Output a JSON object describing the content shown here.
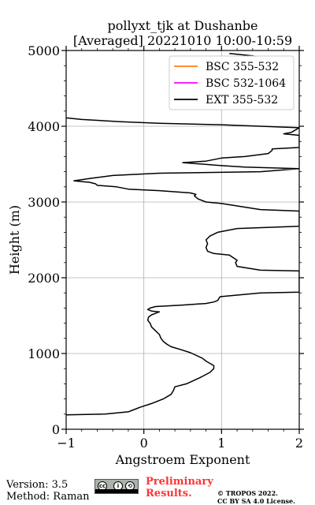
{
  "chart_data": {
    "type": "line",
    "title_line1": "pollyxt_tjk at Dushanbe",
    "title_line2": "[Averaged] 20221010 10:00-10:59",
    "xlabel": "Angstroem Exponent",
    "ylabel": "Height (m)",
    "xlim": [
      -1,
      2
    ],
    "ylim": [
      0,
      5000
    ],
    "xticks": [
      -1,
      0,
      1,
      2
    ],
    "yticks": [
      0,
      1000,
      2000,
      3000,
      4000,
      5000
    ],
    "grid": true,
    "legend_position": "top-right",
    "legend": [
      {
        "name": "BSC 355-532",
        "color": "#ff7f0e"
      },
      {
        "name": "BSC 532-1064",
        "color": "#ff00ff"
      },
      {
        "name": "EXT 355-532",
        "color": "#000000"
      }
    ],
    "series": [
      {
        "name": "EXT 355-532",
        "color": "#000000",
        "x": [
          -1.0,
          -0.5,
          -0.2,
          -0.15,
          -0.05,
          0.1,
          0.25,
          0.35,
          0.38,
          0.4,
          0.55,
          0.72,
          0.85,
          0.9,
          0.9,
          0.85,
          0.8,
          0.75,
          0.6,
          0.48,
          0.35,
          0.3,
          0.25,
          0.22,
          0.2,
          0.15,
          0.1,
          0.08,
          0.05,
          0.06,
          0.1,
          0.15,
          0.2,
          0.1,
          0.05,
          0.08,
          0.15,
          0.5,
          0.8,
          0.9,
          0.95,
          0.98,
          1.5,
          2.0,
          2.0,
          1.5,
          1.2,
          1.18,
          1.2,
          1.1,
          0.9,
          0.82,
          0.8,
          0.82,
          0.8,
          0.85,
          0.95,
          1.2,
          2.0,
          2.0,
          1.5,
          1.0,
          0.8,
          0.7,
          0.65,
          0.67,
          0.6,
          0.2,
          -0.2,
          -0.35,
          -0.6,
          -0.62,
          -0.7,
          -0.8,
          -0.9,
          -0.7,
          -0.4,
          0.2,
          1.5,
          2.0,
          1.3,
          1.0,
          0.5,
          0.8,
          1.0,
          1.3,
          1.6,
          1.65,
          1.65,
          2.0,
          2.0,
          1.8,
          1.9,
          2.0,
          1.5,
          1.0,
          0.2,
          -0.3,
          -0.8,
          -1.0
        ],
        "y": [
          190,
          200,
          230,
          250,
          290,
          340,
          400,
          460,
          510,
          560,
          600,
          680,
          750,
          800,
          840,
          870,
          900,
          940,
          1010,
          1050,
          1090,
          1120,
          1160,
          1200,
          1250,
          1300,
          1350,
          1400,
          1440,
          1480,
          1510,
          1530,
          1550,
          1560,
          1580,
          1600,
          1620,
          1640,
          1660,
          1680,
          1700,
          1750,
          1800,
          1810,
          2090,
          2100,
          2150,
          2200,
          2230,
          2300,
          2320,
          2350,
          2400,
          2450,
          2500,
          2550,
          2600,
          2650,
          2680,
          2880,
          2900,
          2980,
          3000,
          3040,
          3080,
          3100,
          3120,
          3150,
          3170,
          3200,
          3220,
          3240,
          3260,
          3270,
          3280,
          3310,
          3350,
          3380,
          3400,
          3440,
          3460,
          3480,
          3520,
          3540,
          3580,
          3600,
          3640,
          3680,
          3700,
          3720,
          3880,
          3900,
          3920,
          3980,
          4000,
          4020,
          4040,
          4060,
          4090,
          4110
        ]
      },
      {
        "name": "",
        "color": "#000000",
        "x": [
          1.1,
          1.2,
          1.3,
          1.4,
          1.45
        ],
        "y": [
          4960,
          4950,
          4940,
          4930,
          4920
        ]
      }
    ]
  },
  "footer": {
    "version": "Version: 3.5",
    "method": "Method: Raman",
    "preliminary_line1": "Preliminary",
    "preliminary_line2": "Results.",
    "preliminary_color": "#ff3333",
    "copyright_line1": "© TROPOS 2022.",
    "copyright_line2": "CC BY SA 4.0 License.",
    "cc_badge_icon": "cc-by-sa-license-icon"
  }
}
